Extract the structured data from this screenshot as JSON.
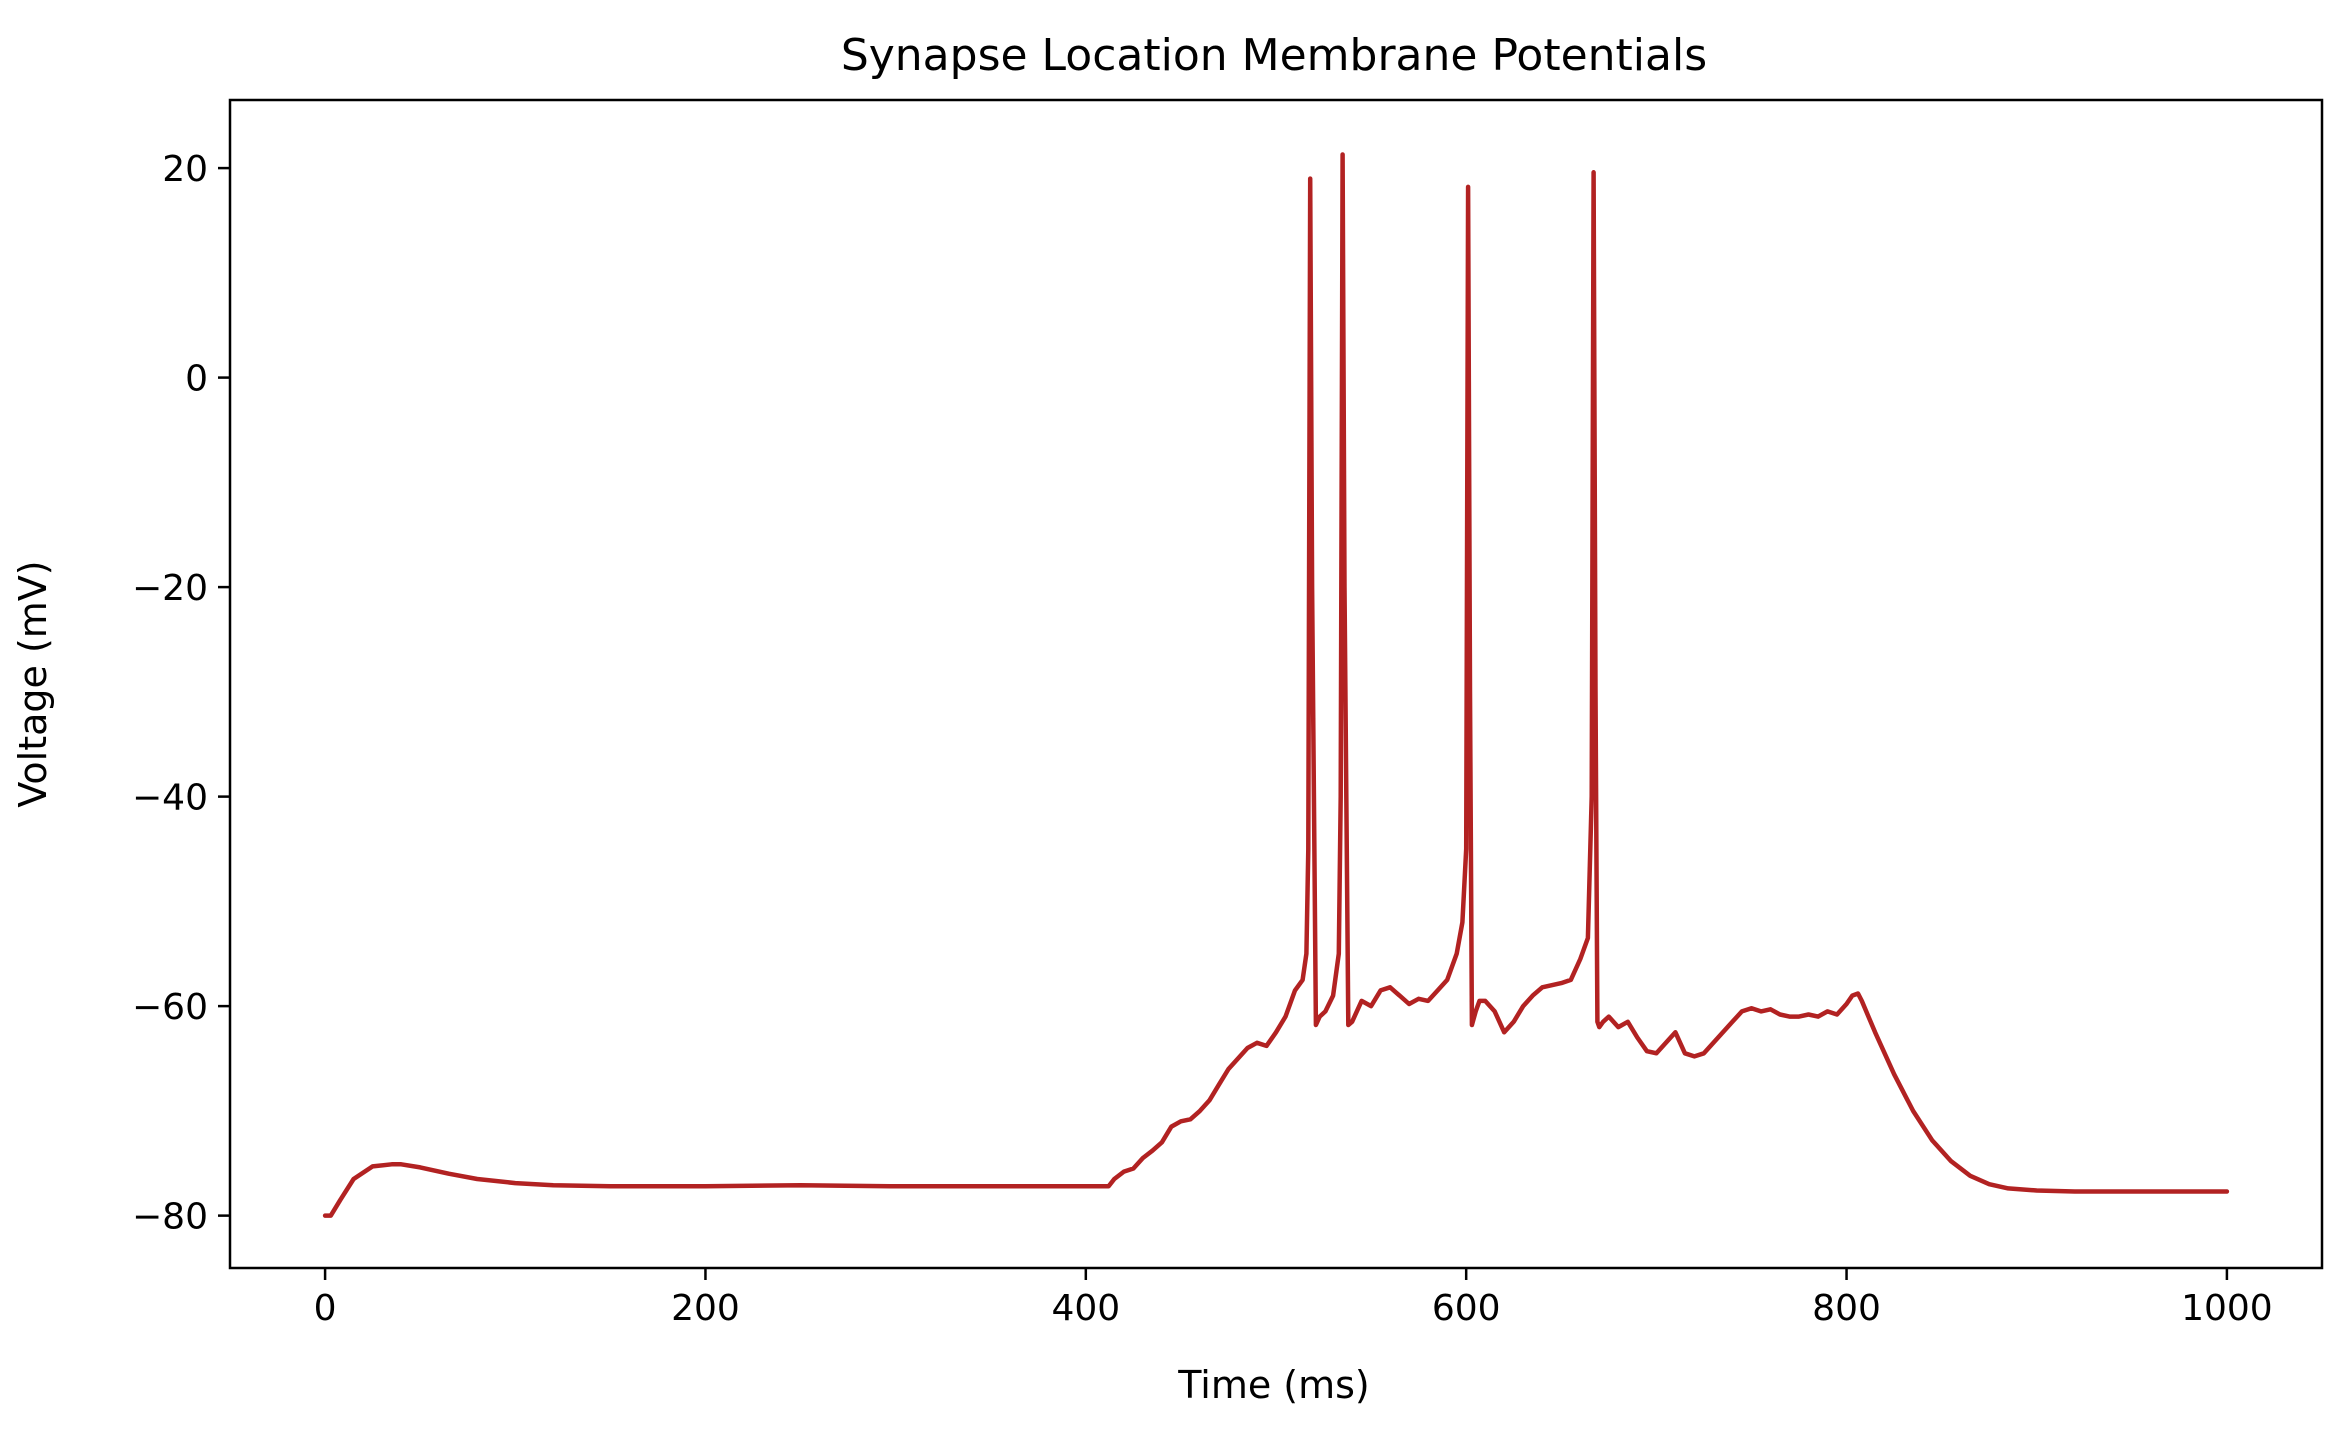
{
  "chart_data": {
    "type": "line",
    "title": "Synapse Location Membrane Potentials",
    "xlabel": "Time (ms)",
    "ylabel": "Voltage (mV)",
    "xlim": [
      -50,
      1050
    ],
    "ylim": [
      -85,
      26.5
    ],
    "xticks": [
      0,
      200,
      400,
      600,
      800,
      1000
    ],
    "yticks": [
      -80,
      -60,
      -40,
      -20,
      0,
      20
    ],
    "xtick_labels": [
      "0",
      "200",
      "400",
      "600",
      "800",
      "1000"
    ],
    "ytick_labels": [
      "−80",
      "−60",
      "−40",
      "−20",
      "0",
      "20"
    ],
    "grid": false,
    "legend": "none",
    "series": [
      {
        "color": "#b22222",
        "x": [
          0,
          3,
          8,
          15,
          25,
          35,
          40,
          50,
          65,
          80,
          100,
          120,
          150,
          200,
          250,
          300,
          350,
          400,
          412,
          415,
          420,
          425,
          430,
          435,
          440,
          445,
          450,
          455,
          460,
          465,
          470,
          475,
          480,
          485,
          490,
          495,
          500,
          505,
          510,
          514,
          516,
          517,
          518,
          519,
          521,
          523,
          526,
          530,
          533,
          534,
          535,
          536,
          538,
          540,
          545,
          550,
          555,
          560,
          565,
          570,
          575,
          580,
          585,
          590,
          595,
          598,
          600,
          601,
          602,
          603,
          605,
          607,
          610,
          615,
          620,
          625,
          630,
          635,
          640,
          645,
          650,
          655,
          660,
          664,
          666,
          667,
          668,
          669,
          670,
          672,
          675,
          680,
          685,
          690,
          695,
          700,
          705,
          710,
          715,
          720,
          725,
          730,
          735,
          740,
          745,
          750,
          755,
          760,
          765,
          770,
          775,
          780,
          785,
          790,
          795,
          800,
          803,
          806,
          808,
          815,
          825,
          835,
          845,
          855,
          865,
          875,
          885,
          900,
          920,
          950,
          1000
        ],
        "y": [
          -80,
          -80,
          -78.5,
          -76.5,
          -75.3,
          -75.1,
          -75.1,
          -75.4,
          -76,
          -76.5,
          -76.9,
          -77.1,
          -77.2,
          -77.2,
          -77.1,
          -77.2,
          -77.2,
          -77.2,
          -77.2,
          -76.5,
          -75.8,
          -75.5,
          -74.5,
          -73.8,
          -73,
          -71.5,
          -71,
          -70.8,
          -70,
          -69,
          -67.5,
          -66,
          -65,
          -64,
          -63.5,
          -63.8,
          -62.5,
          -61,
          -58.5,
          -57.5,
          -55,
          -45,
          19,
          -20,
          -61.8,
          -61,
          -60.5,
          -59,
          -55,
          -40,
          21.3,
          -20,
          -61.8,
          -61.5,
          -59.5,
          -60,
          -58.5,
          -58.2,
          -59,
          -59.8,
          -59.3,
          -59.5,
          -58.5,
          -57.5,
          -55,
          -52,
          -45,
          18.2,
          -30,
          -61.8,
          -60.5,
          -59.5,
          -59.5,
          -60.5,
          -62.5,
          -61.5,
          -60,
          -59,
          -58.2,
          -58,
          -57.8,
          -57.5,
          -55.5,
          -53.5,
          -40,
          19.6,
          -30,
          -61.5,
          -62,
          -61.5,
          -61,
          -62,
          -61.5,
          -63,
          -64.3,
          -64.5,
          -63.5,
          -62.5,
          -64.5,
          -64.8,
          -64.5,
          -63.5,
          -62.5,
          -61.5,
          -60.5,
          -60.2,
          -60.5,
          -60.3,
          -60.8,
          -61,
          -61,
          -60.8,
          -61,
          -60.5,
          -60.8,
          -59.8,
          -59,
          -58.8,
          -59.5,
          -62.5,
          -66.5,
          -70,
          -72.8,
          -74.8,
          -76.2,
          -77,
          -77.4,
          -77.6,
          -77.7,
          -77.7,
          -77.7
        ]
      }
    ]
  }
}
